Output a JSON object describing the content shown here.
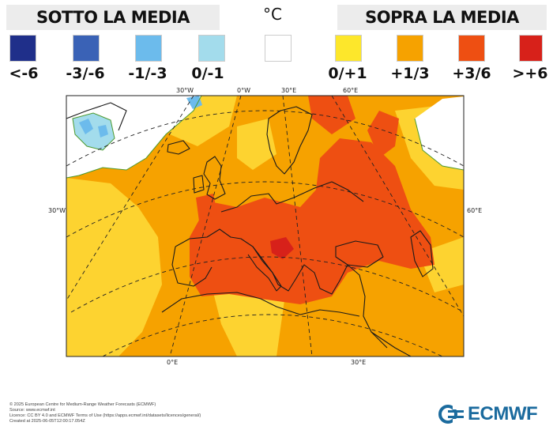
{
  "legend": {
    "below_title": "SOTTO LA MEDIA",
    "above_title": "SOPRA LA MEDIA",
    "unit": "°C",
    "classes": [
      {
        "label": "<-6",
        "color": "#1f2f8a"
      },
      {
        "label": "-3/-6",
        "color": "#3a62b6"
      },
      {
        "label": "-1/-3",
        "color": "#6cbbec"
      },
      {
        "label": "0/-1",
        "color": "#a3dcec"
      },
      {
        "label": "",
        "color": "#ffffff"
      },
      {
        "label": "0/+1",
        "color": "#fde72b"
      },
      {
        "label": "+1/3",
        "color": "#f6a200"
      },
      {
        "label": "+3/6",
        "color": "#ee4f12"
      },
      {
        "label": ">+6",
        "color": "#d7211a"
      }
    ]
  },
  "map": {
    "lon_labels_top": [
      "30°W",
      "0°W",
      "30°E",
      "60°E"
    ],
    "lon_labels_bottom": [
      "0°E",
      "30°E"
    ],
    "lat_labels_left": [
      "30°W"
    ],
    "lat_labels_right": [
      "60°E"
    ],
    "colors": {
      "background": "#f6a200",
      "light": "#fdd330",
      "warm": "#ee4f12",
      "hot": "#d7211a",
      "white": "#ffffff",
      "cold": "#a3dcec",
      "colder": "#6cbbec",
      "coast": "#1a1a1a",
      "contour": "#4d9a2e"
    }
  },
  "credits": [
    "© 2025 European Centre for Medium-Range Weather Forecasts (ECMWF)",
    "Source: www.ecmwf.int",
    "Licence: CC BY 4.0 and ECMWF Terms of Use (https://apps.ecmwf.int/datasets/licences/general/)",
    "Created at 2025-06-05T12:00:17.054Z"
  ],
  "logo": {
    "text": "ECMWF",
    "icon": "ecmwf-logo-icon",
    "color": "#1b6b9e"
  }
}
